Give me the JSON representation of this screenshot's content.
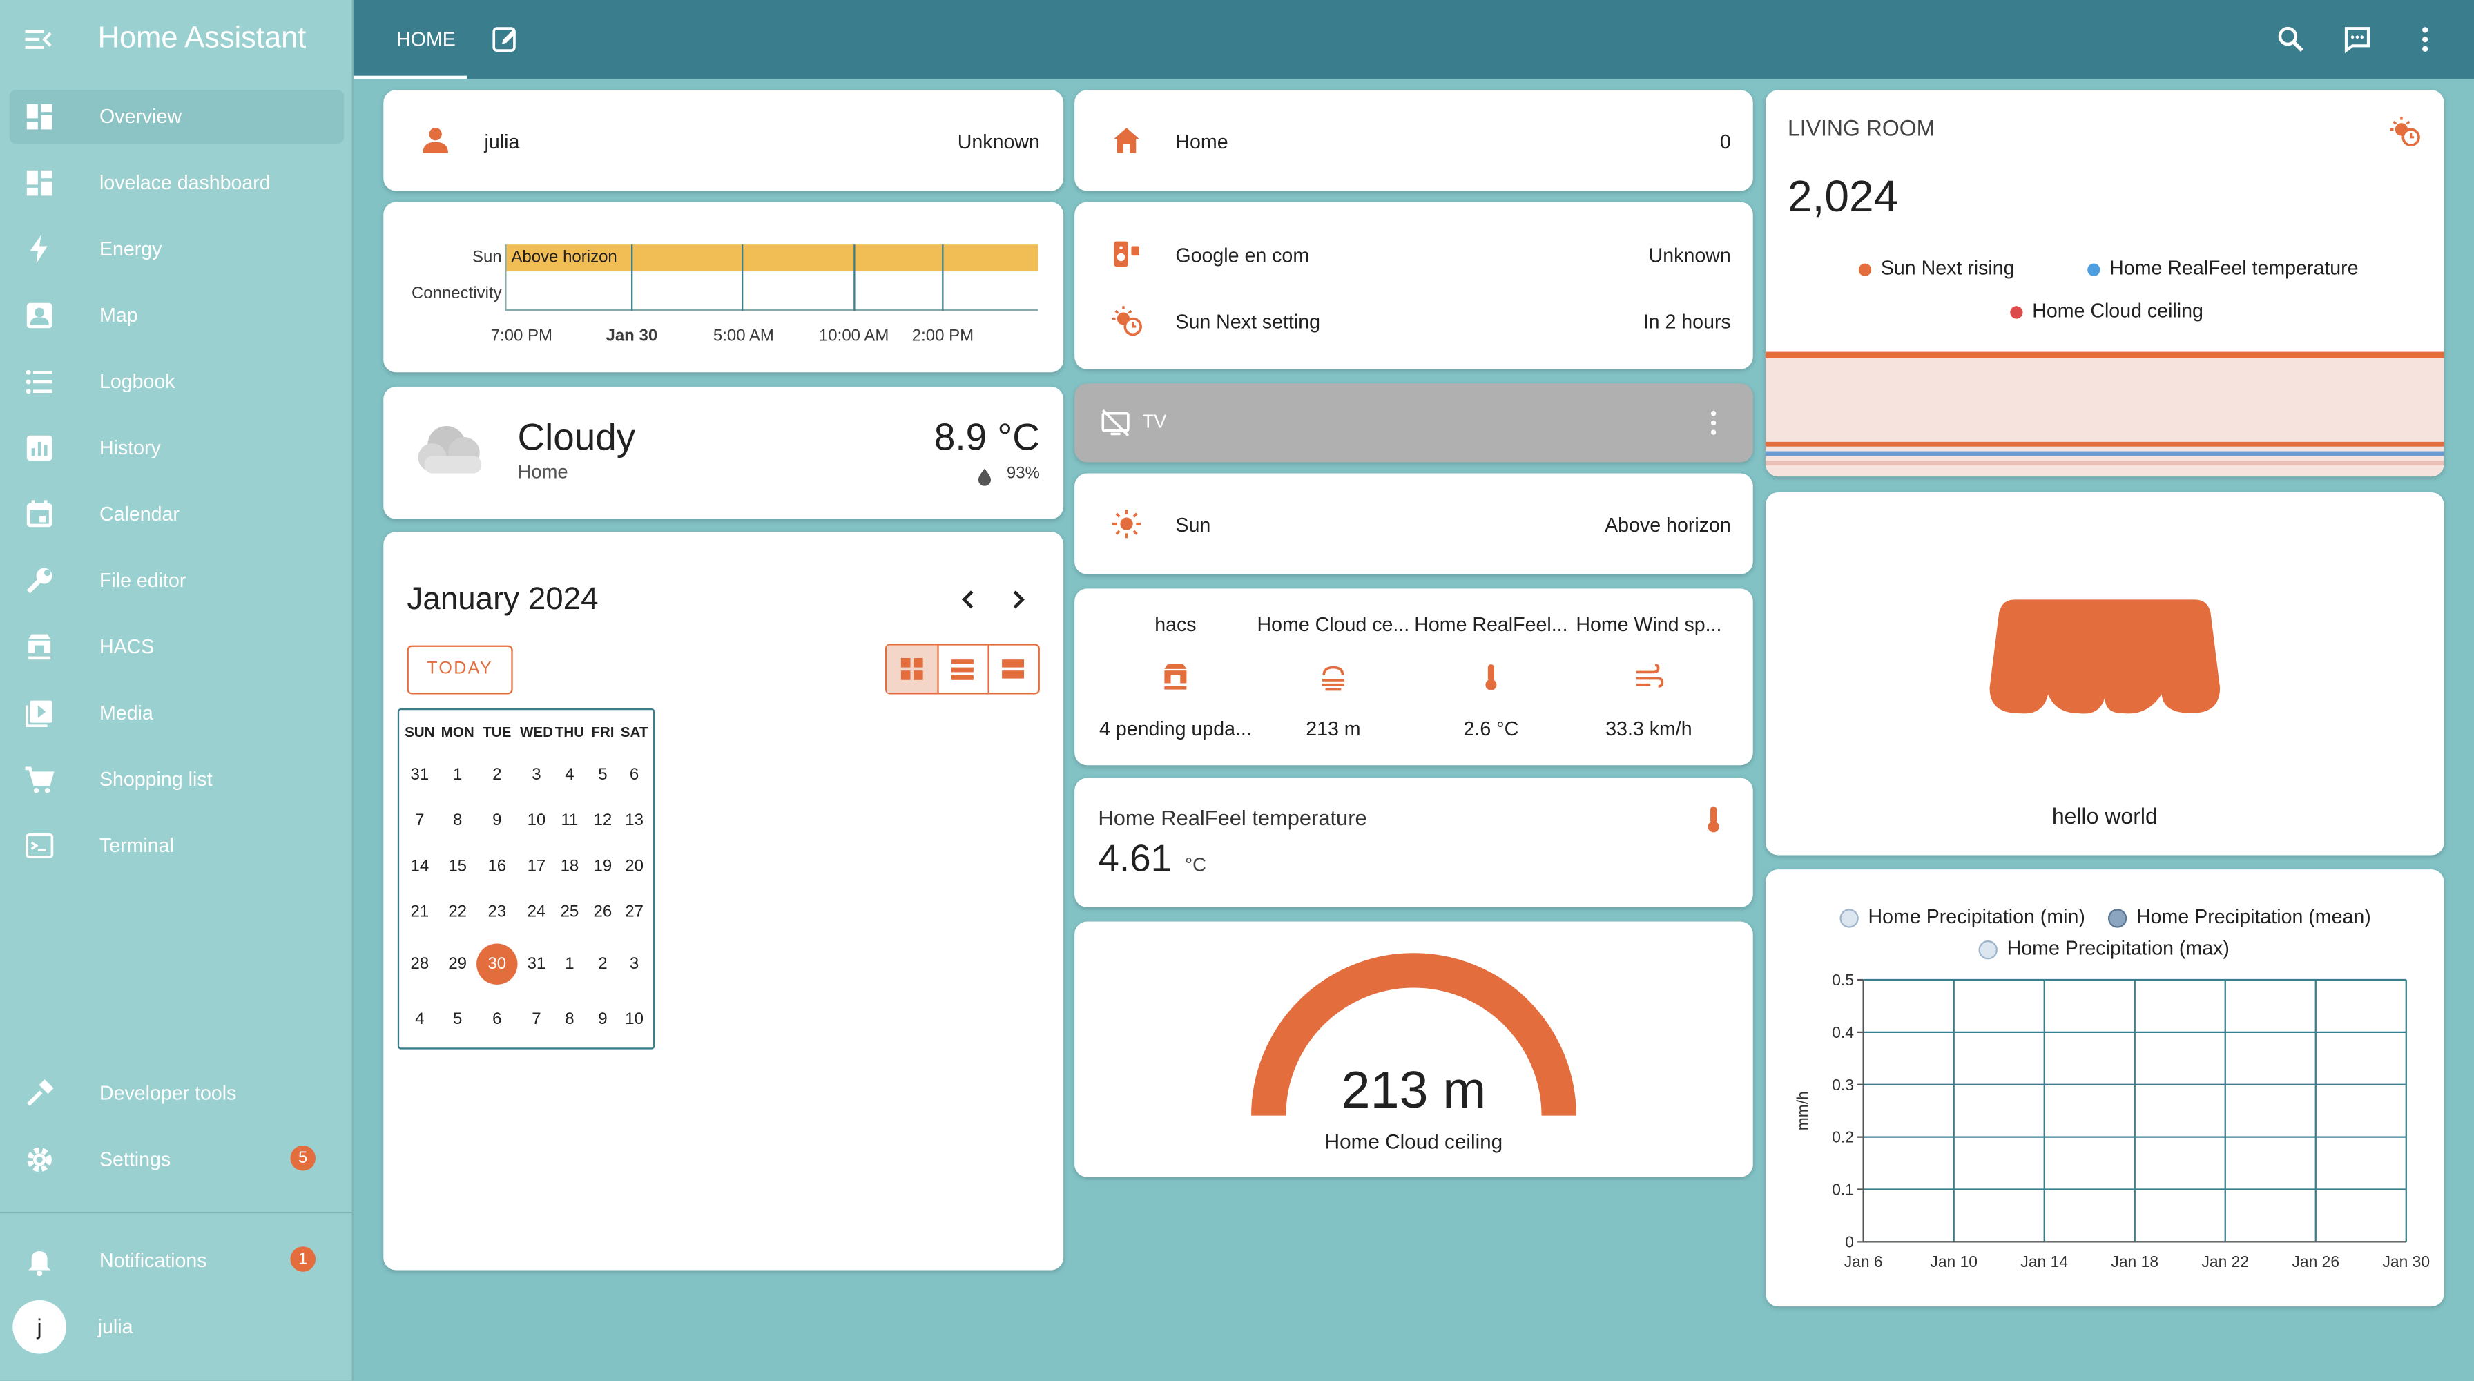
{
  "app": {
    "title": "Home Assistant"
  },
  "sidebar": {
    "items": [
      {
        "label": "Overview",
        "icon": "view-dashboard-icon"
      },
      {
        "label": "lovelace dashboard",
        "icon": "view-dashboard-icon"
      },
      {
        "label": "Energy",
        "icon": "lightning-bolt-icon"
      },
      {
        "label": "Map",
        "icon": "account-box-icon"
      },
      {
        "label": "Logbook",
        "icon": "format-list-bulleted-icon"
      },
      {
        "label": "History",
        "icon": "chart-box-icon"
      },
      {
        "label": "Calendar",
        "icon": "calendar-icon"
      },
      {
        "label": "File editor",
        "icon": "wrench-icon"
      },
      {
        "label": "HACS",
        "icon": "hacs-icon"
      },
      {
        "label": "Media",
        "icon": "play-box-icon"
      },
      {
        "label": "Shopping list",
        "icon": "cart-icon"
      },
      {
        "label": "Terminal",
        "icon": "console-icon"
      }
    ],
    "developer_tools": "Developer tools",
    "settings": "Settings",
    "settings_badge": "5",
    "notifications": "Notifications",
    "notifications_badge": "1",
    "user_initial": "j",
    "user_name": "julia"
  },
  "topbar": {
    "tab_home": "HOME"
  },
  "cards": {
    "person": {
      "name": "julia",
      "state": "Unknown"
    },
    "history": {
      "rows": [
        "Sun",
        "Connectivity"
      ],
      "bar_label": "Above horizon",
      "ticks": [
        "7:00 PM",
        "Jan 30",
        "5:00 AM",
        "10:00 AM",
        "2:00 PM"
      ]
    },
    "weather": {
      "condition": "Cloudy",
      "location": "Home",
      "temperature": "8.9 °C",
      "humidity": "93%"
    },
    "calendar": {
      "title": "January 2024",
      "today_button": "TODAY",
      "weekdays": [
        "SUN",
        "MON",
        "TUE",
        "WED",
        "THU",
        "FRI",
        "SAT"
      ],
      "weeks": [
        [
          "31",
          "1",
          "2",
          "3",
          "4",
          "5",
          "6"
        ],
        [
          "7",
          "8",
          "9",
          "10",
          "11",
          "12",
          "13"
        ],
        [
          "14",
          "15",
          "16",
          "17",
          "18",
          "19",
          "20"
        ],
        [
          "21",
          "22",
          "23",
          "24",
          "25",
          "26",
          "27"
        ],
        [
          "28",
          "29",
          "30",
          "31",
          "1",
          "2",
          "3"
        ],
        [
          "4",
          "5",
          "6",
          "7",
          "8",
          "9",
          "10"
        ]
      ],
      "today": "30"
    },
    "home_zone": {
      "name": "Home",
      "state": "0"
    },
    "entities": [
      {
        "name": "Google en com",
        "state": "Unknown"
      },
      {
        "name": "Sun Next setting",
        "state": "In 2 hours"
      }
    ],
    "tv": {
      "name": "TV"
    },
    "sun": {
      "name": "Sun",
      "state": "Above horizon"
    },
    "glance": [
      {
        "name": "hacs",
        "state": "4 pending upda..."
      },
      {
        "name": "Home Cloud ce...",
        "state": "213 m"
      },
      {
        "name": "Home RealFeel...",
        "state": "2.6 °C"
      },
      {
        "name": "Home Wind sp...",
        "state": "33.3 km/h"
      }
    ],
    "sensor": {
      "name": "Home RealFeel temperature",
      "value": "4.61",
      "unit": "°C"
    },
    "gauge": {
      "value": "213 m",
      "name": "Home Cloud ceiling",
      "fill_fraction": 1.0
    },
    "living_room": {
      "title": "LIVING ROOM",
      "value": "2,024",
      "legend": [
        {
          "label": "Sun Next rising",
          "color": "#e46d3e"
        },
        {
          "label": "Home RealFeel temperature",
          "color": "#4c9ee0"
        },
        {
          "label": "Home Cloud ceiling",
          "color": "#dc4b4b"
        }
      ]
    },
    "picture": {
      "caption": "hello world"
    }
  },
  "chart_data": {
    "type": "line",
    "legend": [
      "Home Precipitation (min)",
      "Home Precipitation (mean)",
      "Home Precipitation (max)"
    ],
    "ylabel": "mm/h",
    "ylim": [
      0,
      0.5
    ],
    "yticks": [
      "0.5",
      "0.4",
      "0.3",
      "0.2",
      "0.1",
      "0"
    ],
    "xticks": [
      "Jan 6",
      "Jan 10",
      "Jan 14",
      "Jan 18",
      "Jan 22",
      "Jan 26",
      "Jan 30"
    ],
    "series": [],
    "grid": true
  },
  "colors": {
    "accent": "#e46d3e",
    "topbar": "#3a7d8d",
    "sidebar": "#9bd0d0",
    "gauge": "#e46d3e"
  }
}
